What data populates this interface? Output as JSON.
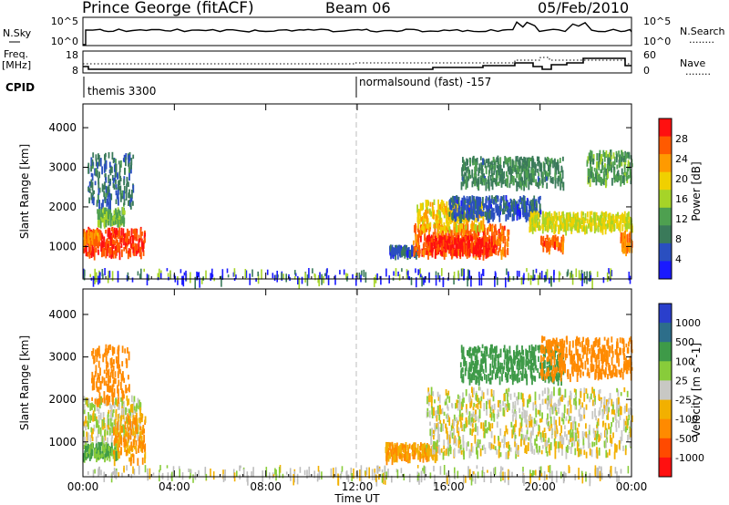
{
  "header": {
    "station": "Prince George (fitACF)",
    "beam": "Beam 06",
    "date": "05/Feb/2010"
  },
  "strip_labels": {
    "nsky": "N.Sky",
    "nsearch": "N.Search",
    "freq_top": "Freq.",
    "freq_unit": "[MHz]",
    "nave": "Nave",
    "cpid": "CPID",
    "legend_dots": "........"
  },
  "noise_panel": {
    "left_ticks": [
      "10^5",
      "10^0"
    ],
    "right_ticks": [
      "10^5",
      "10^0"
    ]
  },
  "freq_panel": {
    "left_ticks": [
      "18",
      "8"
    ],
    "right_ticks": [
      "60",
      "0"
    ]
  },
  "cpid_panel": {
    "segments": [
      {
        "start_hour": 0.0,
        "label": "themis 3300"
      },
      {
        "start_hour": 12.0,
        "label": "normalsound (fast) -157"
      }
    ]
  },
  "axes": {
    "xlabel": "Time UT",
    "ylabel": "Slant Range [km]",
    "xticks": [
      "00:00",
      "04:00",
      "08:00",
      "12:00",
      "16:00",
      "20:00",
      "00:00"
    ],
    "xlim_hours": [
      0,
      24
    ],
    "yticks": [
      "1000",
      "2000",
      "3000",
      "4000"
    ],
    "ylim_km": [
      180,
      4600
    ]
  },
  "colors": {
    "power": [
      "#1a1aff",
      "#2a4fc0",
      "#3a7a5a",
      "#4ea050",
      "#a6d428",
      "#f0d000",
      "#ff9a00",
      "#ff5a00",
      "#ff1010"
    ],
    "velocity": [
      "#2a3fcc",
      "#2d6e8a",
      "#3e9a48",
      "#88cc3a",
      "#c8c8c4",
      "#f2b000",
      "#ff8a00",
      "#ff4a00",
      "#ff1010"
    ],
    "ground": "#bdbdbd"
  },
  "chart_data": {
    "type": "heatmap",
    "title": "Prince George (fitACF) Beam 06 05/Feb/2010",
    "xlabel": "Time UT",
    "ylabel": "Slant Range [km]",
    "x_range_hours": [
      0,
      24
    ],
    "y_range_km": [
      180,
      4600
    ],
    "power": {
      "colorbar_label": "Power [dB]",
      "colorbar_ticks": [
        "28",
        "24",
        "20",
        "16",
        "12",
        "8",
        "4"
      ],
      "range_db": [
        0,
        32
      ],
      "patches": [
        {
          "t0": 0.0,
          "t1": 2.7,
          "r0": 850,
          "r1": 1500,
          "p": 28
        },
        {
          "t0": 0.0,
          "t1": 0.7,
          "r0": 1150,
          "r1": 1450,
          "p": 24
        },
        {
          "t0": 0.6,
          "t1": 1.8,
          "r0": 1650,
          "r1": 2000,
          "p": 14
        },
        {
          "t0": 0.2,
          "t1": 2.2,
          "r0": 2100,
          "r1": 3400,
          "p": 8
        },
        {
          "t0": 13.4,
          "t1": 14.6,
          "r0": 850,
          "r1": 1050,
          "p": 6
        },
        {
          "t0": 14.4,
          "t1": 18.6,
          "r0": 850,
          "r1": 1600,
          "p": 26
        },
        {
          "t0": 15.0,
          "t1": 18.0,
          "r0": 900,
          "r1": 1300,
          "p": 30
        },
        {
          "t0": 14.6,
          "t1": 17.5,
          "r0": 1500,
          "r1": 2200,
          "p": 20
        },
        {
          "t0": 16.0,
          "t1": 20.0,
          "r0": 1800,
          "r1": 2300,
          "p": 6
        },
        {
          "t0": 16.5,
          "t1": 21.0,
          "r0": 2600,
          "r1": 3300,
          "p": 10
        },
        {
          "t0": 19.5,
          "t1": 24.0,
          "r0": 1500,
          "r1": 1900,
          "p": 18
        },
        {
          "t0": 20.0,
          "t1": 21.0,
          "r0": 1000,
          "r1": 1300,
          "p": 26
        },
        {
          "t0": 22.0,
          "t1": 24.0,
          "r0": 2700,
          "r1": 3450,
          "p": 12
        },
        {
          "t0": 23.5,
          "t1": 24.0,
          "r0": 950,
          "r1": 1400,
          "p": 24
        }
      ]
    },
    "velocity": {
      "colorbar_label": "Velocity [m s^-1]",
      "colorbar_ticks": [
        "1000",
        "500",
        "100",
        "25",
        "-25",
        "-100",
        "-500",
        "-1000"
      ],
      "patches": [
        {
          "t0": 0.0,
          "t1": 2.5,
          "r0": 1100,
          "r1": 2100,
          "v": 0
        },
        {
          "t0": 0.0,
          "t1": 1.5,
          "r0": 700,
          "r1": 1000,
          "v": 100
        },
        {
          "t0": 1.3,
          "t1": 2.7,
          "r0": 600,
          "r1": 1700,
          "v": -100
        },
        {
          "t0": 0.3,
          "t1": 2.0,
          "r0": 2000,
          "r1": 3300,
          "v": -300
        },
        {
          "t0": 13.2,
          "t1": 15.5,
          "r0": 650,
          "r1": 1000,
          "v": -100
        },
        {
          "t0": 15.0,
          "t1": 24.0,
          "r0": 750,
          "r1": 2300,
          "v": 0
        },
        {
          "t0": 16.5,
          "t1": 21.0,
          "r0": 2500,
          "r1": 3300,
          "v": 200
        },
        {
          "t0": 20.0,
          "t1": 24.0,
          "r0": 2600,
          "r1": 3500,
          "v": -400
        }
      ]
    }
  }
}
